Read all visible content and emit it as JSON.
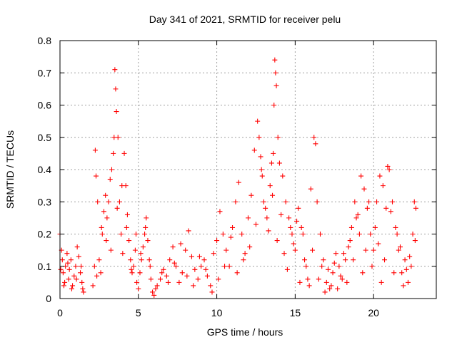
{
  "chart_data": {
    "type": "scatter",
    "title": "Day 341 of 2021, SRMTID for receiver pelu",
    "xlabel": "GPS time / hours",
    "ylabel": "SRMTID / TECUs",
    "xlim": [
      0,
      24
    ],
    "ylim": [
      0,
      0.8
    ],
    "xticks": [
      0,
      5,
      10,
      15,
      20
    ],
    "yticks": [
      0,
      0.1,
      0.2,
      0.3,
      0.4,
      0.5,
      0.6,
      0.7,
      0.8
    ],
    "xtick_labels": [
      "0",
      "5",
      "10",
      "15",
      "20"
    ],
    "ytick_labels": [
      "0",
      "0.1",
      "0.2",
      "0.3",
      "0.4",
      "0.5",
      "0.6",
      "0.7",
      "0.8"
    ],
    "grid": true,
    "marker": "+",
    "color": "#ff0000",
    "series": [
      {
        "name": "SRMTID",
        "x": [
          0.0,
          0.1,
          0.15,
          0.2,
          0.3,
          0.35,
          0.45,
          0.55,
          0.6,
          0.7,
          0.8,
          0.9,
          1.0,
          1.1,
          1.2,
          1.3,
          1.4,
          1.45,
          1.5,
          2.1,
          2.2,
          2.25,
          2.3,
          2.4,
          2.5,
          2.6,
          2.7,
          2.8,
          2.9,
          3.0,
          3.1,
          3.2,
          3.3,
          3.4,
          3.45,
          3.5,
          3.55,
          3.6,
          3.7,
          3.8,
          3.9,
          4.0,
          4.1,
          4.2,
          4.3,
          4.4,
          4.5,
          4.6,
          4.7,
          4.8,
          4.9,
          5.0,
          5.1,
          5.2,
          5.3,
          5.4,
          5.5,
          5.6,
          5.7,
          5.8,
          5.9,
          6.0,
          6.2,
          6.4,
          6.6,
          6.8,
          7.0,
          7.2,
          7.4,
          7.6,
          7.8,
          8.0,
          8.2,
          8.4,
          8.6,
          8.8,
          9.0,
          9.2,
          9.4,
          9.6,
          9.8,
          10.0,
          10.2,
          10.4,
          10.6,
          10.8,
          11.0,
          11.2,
          11.4,
          11.6,
          11.8,
          12.0,
          12.2,
          12.4,
          12.6,
          12.7,
          12.8,
          12.9,
          13.0,
          13.2,
          13.4,
          13.5,
          13.6,
          13.65,
          13.7,
          13.75,
          13.8,
          13.9,
          14.0,
          14.2,
          14.4,
          14.6,
          14.8,
          15.0,
          15.2,
          15.4,
          15.6,
          15.8,
          16.0,
          16.2,
          16.3,
          16.4,
          16.6,
          16.8,
          17.0,
          17.2,
          17.4,
          17.6,
          17.8,
          18.0,
          18.2,
          18.4,
          18.6,
          18.8,
          19.0,
          19.2,
          19.4,
          19.6,
          19.8,
          20.0,
          20.2,
          20.4,
          20.6,
          20.8,
          20.9,
          21.0,
          21.2,
          21.4,
          21.6,
          21.8,
          22.0,
          22.2,
          22.4,
          22.6,
          22.7,
          0.05,
          0.25,
          0.5,
          0.75,
          1.05,
          1.35,
          2.35,
          2.65,
          2.95,
          3.25,
          3.65,
          3.95,
          4.25,
          4.55,
          4.85,
          5.15,
          5.45,
          5.75,
          6.1,
          6.5,
          6.9,
          7.3,
          7.7,
          8.1,
          8.5,
          8.9,
          9.3,
          9.7,
          10.1,
          10.5,
          10.9,
          11.3,
          11.7,
          12.1,
          12.5,
          12.85,
          13.1,
          13.3,
          13.55,
          13.85,
          14.1,
          14.3,
          14.5,
          14.7,
          14.9,
          15.1,
          15.3,
          15.5,
          15.7,
          15.9,
          16.1,
          16.5,
          16.7,
          16.9,
          17.1,
          17.3,
          17.5,
          17.7,
          17.9,
          18.1,
          18.3,
          18.5,
          18.7,
          18.9,
          19.1,
          19.3,
          19.5,
          19.7,
          19.9,
          20.1,
          20.3,
          20.5,
          20.7,
          21.1,
          21.3,
          21.5,
          21.7,
          21.9,
          22.1,
          22.3,
          22.5,
          22.65
        ],
        "y": [
          0.2,
          0.15,
          0.12,
          0.08,
          0.05,
          0.1,
          0.14,
          0.06,
          0.09,
          0.12,
          0.04,
          0.07,
          0.1,
          0.16,
          0.13,
          0.08,
          0.05,
          0.03,
          0.02,
          0.04,
          0.1,
          0.46,
          0.38,
          0.3,
          0.12,
          0.08,
          0.2,
          0.27,
          0.32,
          0.25,
          0.3,
          0.37,
          0.4,
          0.45,
          0.5,
          0.71,
          0.65,
          0.58,
          0.5,
          0.3,
          0.2,
          0.14,
          0.45,
          0.35,
          0.26,
          0.18,
          0.12,
          0.08,
          0.1,
          0.15,
          0.05,
          0.03,
          0.08,
          0.12,
          0.16,
          0.2,
          0.25,
          0.18,
          0.12,
          0.06,
          0.02,
          0.01,
          0.04,
          0.06,
          0.09,
          0.07,
          0.12,
          0.16,
          0.1,
          0.05,
          0.08,
          0.15,
          0.21,
          0.13,
          0.09,
          0.06,
          0.1,
          0.12,
          0.07,
          0.04,
          0.14,
          0.18,
          0.27,
          0.2,
          0.15,
          0.1,
          0.22,
          0.3,
          0.36,
          0.2,
          0.14,
          0.25,
          0.32,
          0.46,
          0.55,
          0.5,
          0.44,
          0.38,
          0.3,
          0.25,
          0.35,
          0.42,
          0.45,
          0.6,
          0.74,
          0.7,
          0.66,
          0.5,
          0.42,
          0.38,
          0.3,
          0.25,
          0.2,
          0.15,
          0.28,
          0.22,
          0.12,
          0.06,
          0.34,
          0.5,
          0.48,
          0.3,
          0.2,
          0.12,
          0.05,
          0.03,
          0.08,
          0.14,
          0.1,
          0.06,
          0.12,
          0.16,
          0.22,
          0.3,
          0.26,
          0.38,
          0.34,
          0.28,
          0.2,
          0.15,
          0.3,
          0.38,
          0.35,
          0.28,
          0.41,
          0.4,
          0.3,
          0.22,
          0.15,
          0.08,
          0.12,
          0.05,
          0.1,
          0.3,
          0.28,
          0.09,
          0.04,
          0.11,
          0.03,
          0.06,
          0.1,
          0.07,
          0.22,
          0.18,
          0.15,
          0.28,
          0.35,
          0.22,
          0.09,
          0.2,
          0.14,
          0.22,
          0.1,
          0.03,
          0.08,
          0.05,
          0.11,
          0.17,
          0.07,
          0.04,
          0.13,
          0.09,
          0.02,
          0.06,
          0.1,
          0.19,
          0.08,
          0.12,
          0.16,
          0.23,
          0.4,
          0.28,
          0.21,
          0.32,
          0.18,
          0.26,
          0.14,
          0.09,
          0.22,
          0.17,
          0.24,
          0.05,
          0.2,
          0.1,
          0.04,
          0.15,
          0.06,
          0.1,
          0.02,
          0.09,
          0.04,
          0.11,
          0.03,
          0.07,
          0.14,
          0.05,
          0.18,
          0.12,
          0.25,
          0.2,
          0.08,
          0.15,
          0.3,
          0.1,
          0.22,
          0.17,
          0.05,
          0.12,
          0.27,
          0.08,
          0.2,
          0.16,
          0.04,
          0.09,
          0.13,
          0.2,
          0.18
        ]
      }
    ]
  }
}
